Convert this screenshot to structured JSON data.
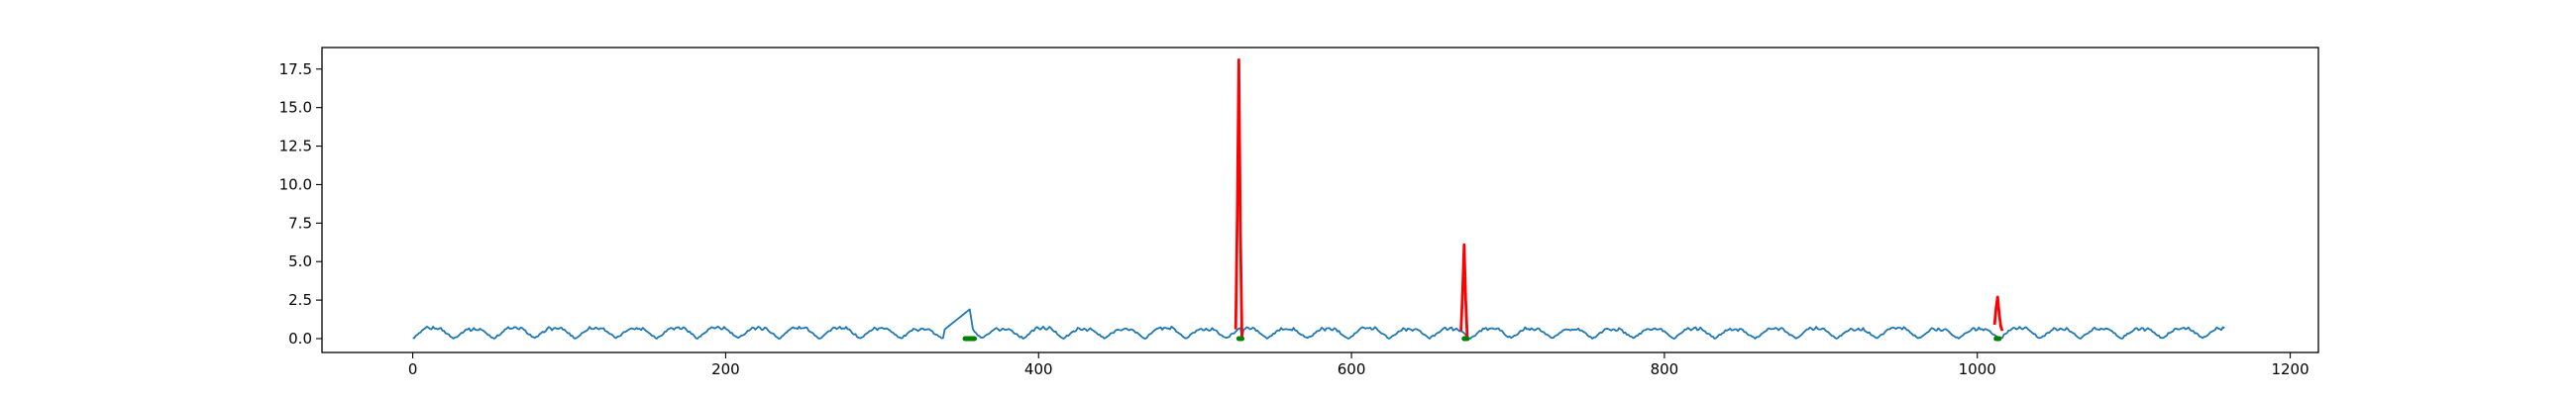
{
  "chart_data": {
    "type": "line",
    "title": "",
    "xlabel": "",
    "ylabel": "",
    "xlim": [
      -58,
      1218
    ],
    "ylim": [
      -0.9,
      18.9
    ],
    "xticks": [
      0,
      200,
      400,
      600,
      800,
      1000,
      1200
    ],
    "xtick_labels": [
      "0",
      "200",
      "400",
      "600",
      "800",
      "1000",
      "1200"
    ],
    "yticks": [
      0.0,
      2.5,
      5.0,
      7.5,
      10.0,
      12.5,
      15.0,
      17.5
    ],
    "ytick_labels": [
      "0.0",
      "2.5",
      "5.0",
      "7.5",
      "10.0",
      "12.5",
      "15.0",
      "17.5"
    ],
    "grid": false,
    "series": [
      {
        "role": "signal",
        "color": "#1f77b4",
        "style": "line",
        "x_start": 0,
        "x_end": 1158,
        "n_points": 1159,
        "baseline_period": 26,
        "baseline_min": 0.0,
        "baseline_max": 0.75
      },
      {
        "role": "highlight-segments",
        "color": "#ff0000",
        "style": "line",
        "segments": [
          {
            "x": [
              526,
              527,
              528,
              529,
              530
            ],
            "y": [
              0.6,
              8.0,
              18.1,
              7.0,
              0.1
            ]
          },
          {
            "x": [
              670,
              671,
              672,
              673,
              674
            ],
            "y": [
              0.5,
              3.0,
              6.1,
              2.5,
              0.1
            ]
          },
          {
            "x": [
              1011,
              1012,
              1013,
              1014,
              1015,
              1016
            ],
            "y": [
              0.9,
              2.0,
              2.7,
              1.6,
              0.8,
              0.5
            ]
          }
        ]
      },
      {
        "role": "markers",
        "color": "#008000",
        "style": "line",
        "segments": [
          {
            "x": [
              353,
              354,
              355,
              356,
              357,
              358,
              359
            ],
            "y": [
              0.0,
              0.0,
              0.0,
              0.0,
              0.0,
              0.0,
              0.0
            ]
          },
          {
            "x": [
              528,
              529,
              530
            ],
            "y": [
              0.0,
              0.0,
              0.0
            ]
          },
          {
            "x": [
              672,
              673,
              674
            ],
            "y": [
              0.0,
              0.0,
              0.0
            ]
          },
          {
            "x": [
              1012,
              1013,
              1014
            ],
            "y": [
              0.0,
              0.0,
              0.0
            ]
          }
        ]
      }
    ],
    "local_bumps": [
      {
        "x_start": 340,
        "x_end": 358,
        "peak_x": 356,
        "peak_y": 1.9
      }
    ]
  }
}
